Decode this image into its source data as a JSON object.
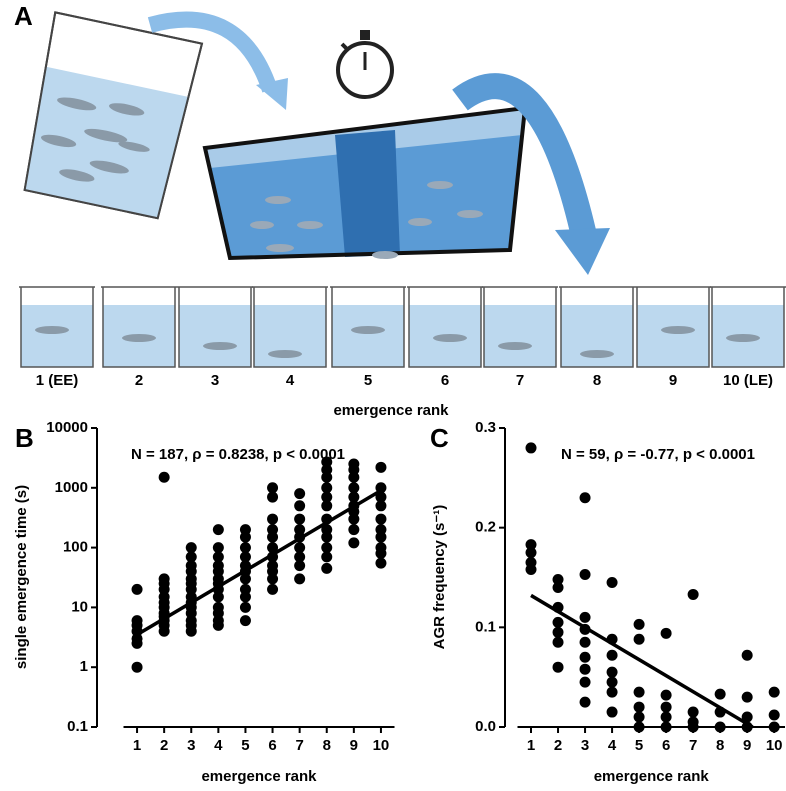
{
  "panel_a": {
    "label": "A",
    "beaker_labels": [
      "1 (EE)",
      "2",
      "3",
      "4",
      "5",
      "6",
      "7",
      "8",
      "9",
      "10 (LE)"
    ],
    "axis_label": "emergence rank"
  },
  "chart_data": [
    {
      "type": "scatter",
      "panel_label": "B",
      "annotation": "N = 187, ρ = 0.8238, p < 0.0001",
      "xlabel": "emergence rank",
      "ylabel": "single emergence time (s)",
      "yscale": "log",
      "color": "#000000",
      "xlim": [
        0.5,
        10.5
      ],
      "xticks": [
        1,
        2,
        3,
        4,
        5,
        6,
        7,
        8,
        9,
        10
      ],
      "ylim": [
        0.1,
        10000
      ],
      "yticks": [
        0.1,
        1,
        10,
        100,
        1000,
        10000
      ],
      "points": {
        "x": [
          1,
          1,
          1,
          1,
          1,
          1,
          1,
          2,
          2,
          2,
          2,
          2,
          2,
          2,
          2,
          2,
          2,
          2,
          2,
          3,
          3,
          3,
          3,
          3,
          3,
          3,
          3,
          3,
          3,
          3,
          3,
          3,
          3,
          4,
          4,
          4,
          4,
          4,
          4,
          4,
          4,
          4,
          4,
          4,
          4,
          4,
          5,
          5,
          5,
          5,
          5,
          5,
          5,
          5,
          5,
          5,
          5,
          6,
          6,
          6,
          6,
          6,
          6,
          6,
          6,
          6,
          6,
          6,
          7,
          7,
          7,
          7,
          7,
          7,
          7,
          7,
          7,
          8,
          8,
          8,
          8,
          8,
          8,
          8,
          8,
          8,
          8,
          8,
          8,
          9,
          9,
          9,
          9,
          9,
          9,
          9,
          9,
          9,
          9,
          10,
          10,
          10,
          10,
          10,
          10,
          10,
          10,
          10,
          10
        ],
        "y": [
          1,
          2.5,
          3,
          4,
          5,
          6,
          20,
          1500,
          30,
          25,
          20,
          15,
          12,
          10,
          8,
          7,
          6,
          5,
          4,
          100,
          70,
          50,
          40,
          30,
          25,
          20,
          15,
          12,
          10,
          8,
          6,
          5,
          4,
          200,
          100,
          70,
          50,
          40,
          30,
          25,
          20,
          15,
          10,
          8,
          6,
          5,
          200,
          150,
          100,
          70,
          50,
          40,
          30,
          20,
          15,
          10,
          6,
          1000,
          700,
          300,
          200,
          150,
          100,
          70,
          50,
          40,
          30,
          20,
          800,
          500,
          300,
          200,
          150,
          100,
          70,
          50,
          30,
          2700,
          2000,
          1500,
          1000,
          700,
          500,
          300,
          200,
          150,
          100,
          70,
          45,
          2500,
          2000,
          1500,
          1000,
          700,
          500,
          400,
          300,
          200,
          120,
          2200,
          1000,
          700,
          500,
          300,
          200,
          150,
          100,
          80,
          55
        ]
      },
      "fit_line": {
        "x": [
          1,
          10
        ],
        "y": [
          3.5,
          900
        ]
      }
    },
    {
      "type": "scatter",
      "panel_label": "C",
      "annotation": "N = 59, ρ = -0.77, p < 0.0001",
      "xlabel": "emergence rank",
      "ylabel": "AGR frequency (s⁻¹)",
      "yscale": "linear",
      "color": "#000000",
      "xlim": [
        0.5,
        10.4
      ],
      "xticks": [
        1,
        2,
        3,
        4,
        5,
        6,
        7,
        8,
        9,
        10
      ],
      "ylim": [
        0,
        0.3
      ],
      "yticks": [
        {
          "value": 0,
          "label": "0.0"
        },
        0.1,
        0.2,
        0.3
      ],
      "points": {
        "x": [
          1,
          1,
          1,
          1,
          1,
          2,
          2,
          2,
          2,
          2,
          2,
          2,
          3,
          3,
          3,
          3,
          3,
          3,
          3,
          3,
          3,
          4,
          4,
          4,
          4,
          4,
          4,
          4,
          5,
          5,
          5,
          5,
          5,
          5,
          6,
          6,
          6,
          6,
          6,
          7,
          7,
          7,
          7,
          8,
          8,
          8,
          9,
          9,
          9,
          9,
          10,
          10,
          10
        ],
        "y": [
          0.28,
          0.183,
          0.175,
          0.165,
          0.158,
          0.148,
          0.14,
          0.12,
          0.105,
          0.095,
          0.085,
          0.06,
          0.23,
          0.153,
          0.11,
          0.098,
          0.085,
          0.07,
          0.058,
          0.045,
          0.025,
          0.145,
          0.088,
          0.072,
          0.055,
          0.045,
          0.035,
          0.015,
          0.103,
          0.088,
          0.035,
          0.02,
          0.01,
          0,
          0.094,
          0.032,
          0.02,
          0.01,
          0,
          0.133,
          0.015,
          0.005,
          0,
          0.033,
          0.015,
          0,
          0.072,
          0.03,
          0.01,
          0,
          0.035,
          0.012,
          0
        ]
      },
      "fit_line": {
        "x": [
          1,
          9.2
        ],
        "y": [
          0.132,
          0
        ]
      }
    }
  ]
}
